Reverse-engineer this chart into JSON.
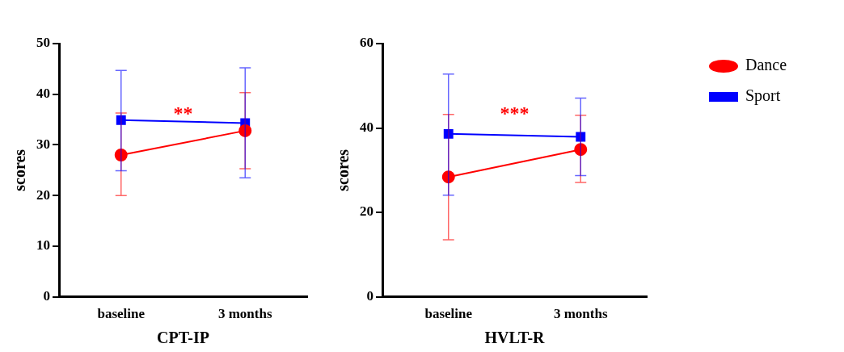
{
  "chart_data": [
    {
      "type": "line",
      "xlabel": "CPT-IP",
      "ylabel": "scores",
      "categories": [
        "baseline",
        "3 months"
      ],
      "ylim": [
        0,
        50
      ],
      "yticks": [
        0,
        10,
        20,
        30,
        40,
        50
      ],
      "grid": false,
      "legend": false,
      "annotations": [
        "**"
      ],
      "series": [
        {
          "color": "#ff0000",
          "marker": "circle",
          "values": [
            28,
            32.8
          ],
          "errors": [
            [
              20,
              36.3
            ],
            [
              25.3,
              40.3
            ]
          ]
        },
        {
          "color": "#0000ff",
          "marker": "square",
          "values": [
            34.9,
            34.3
          ],
          "errors": [
            [
              24.9,
              44.7
            ],
            [
              23.5,
              45.2
            ]
          ]
        }
      ]
    },
    {
      "type": "line",
      "xlabel": "HVLT-R",
      "ylabel": "scores",
      "categories": [
        "baseline",
        "3 months"
      ],
      "ylim": [
        0,
        60
      ],
      "yticks": [
        0,
        20,
        40,
        60
      ],
      "grid": false,
      "legend": "top right",
      "annotations": [
        "***"
      ],
      "series": [
        {
          "name": "Dance",
          "color": "#ff0000",
          "marker": "circle",
          "values": [
            28.4,
            34.9
          ],
          "errors": [
            [
              13.5,
              43.2
            ],
            [
              27.1,
              43
            ]
          ]
        },
        {
          "name": "Sport",
          "color": "#0000ff",
          "marker": "square",
          "values": [
            38.6,
            37.9
          ],
          "errors": [
            [
              24.1,
              52.8
            ],
            [
              28.7,
              47.1
            ]
          ]
        }
      ]
    }
  ]
}
